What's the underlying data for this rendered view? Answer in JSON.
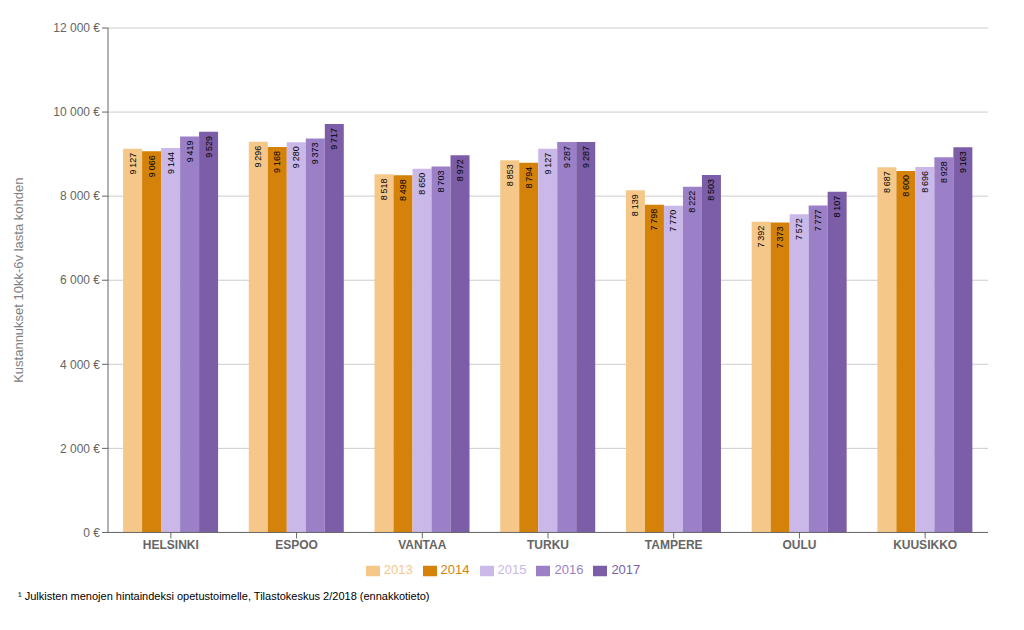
{
  "chart_data": {
    "type": "bar",
    "ylabel": "Kustannukset 10kk-6v lasta kohden",
    "footnote": "¹ Julkisten menojen hintaindeksi opetustoimelle, Tilastokeskus 2/2018 (ennakkotieto)",
    "categories": [
      "HELSINKI",
      "ESPOO",
      "VANTAA",
      "TURKU",
      "TAMPERE",
      "OULU",
      "KUUSIKKO"
    ],
    "series": [
      {
        "name": "2013",
        "color": "#F5C88A",
        "values": [
          9127,
          9296,
          8518,
          8853,
          8139,
          7392,
          8687
        ],
        "value_labels": [
          "9 127",
          "9 296",
          "8 518",
          "8 853",
          "8 139",
          "7 392",
          "8 687"
        ]
      },
      {
        "name": "2014",
        "color": "#D4820A",
        "values": [
          9066,
          9168,
          8498,
          8794,
          7798,
          7373,
          8600
        ],
        "value_labels": [
          "9 066",
          "9 168",
          "8 498",
          "8 794",
          "7 798",
          "7 373",
          "8 600"
        ]
      },
      {
        "name": "2015",
        "color": "#C9B8E8",
        "values": [
          9144,
          9280,
          8650,
          9127,
          7770,
          7572,
          8696
        ],
        "value_labels": [
          "9 144",
          "9 280",
          "8 650",
          "9 127",
          "7 770",
          "7 572",
          "8 696"
        ]
      },
      {
        "name": "2016",
        "color": "#9B80C8",
        "values": [
          9419,
          9373,
          8703,
          9287,
          8222,
          7777,
          8928
        ],
        "value_labels": [
          "9 419",
          "9 373",
          "8 703",
          "9 287",
          "8 222",
          "7 777",
          "8 928"
        ]
      },
      {
        "name": "2017",
        "color": "#7B5EA7",
        "values": [
          9529,
          9717,
          8972,
          9287,
          8503,
          8107,
          9163
        ],
        "value_labels": [
          "9 529",
          "9 717",
          "8 972",
          "9 287",
          "8 503",
          "8 107",
          "9 163"
        ]
      }
    ],
    "ylim": [
      0,
      12000
    ],
    "yticks": [
      {
        "value": 0,
        "label": "0 €"
      },
      {
        "value": 2000,
        "label": "2 000 €"
      },
      {
        "value": 4000,
        "label": "4 000 €"
      },
      {
        "value": 6000,
        "label": "6 000 €"
      },
      {
        "value": 8000,
        "label": "8 000 €"
      },
      {
        "value": 10000,
        "label": "10 000 €"
      },
      {
        "value": 12000,
        "label": "12 000 €"
      }
    ],
    "grid": true,
    "legend": "bottom",
    "data_labels": true
  }
}
